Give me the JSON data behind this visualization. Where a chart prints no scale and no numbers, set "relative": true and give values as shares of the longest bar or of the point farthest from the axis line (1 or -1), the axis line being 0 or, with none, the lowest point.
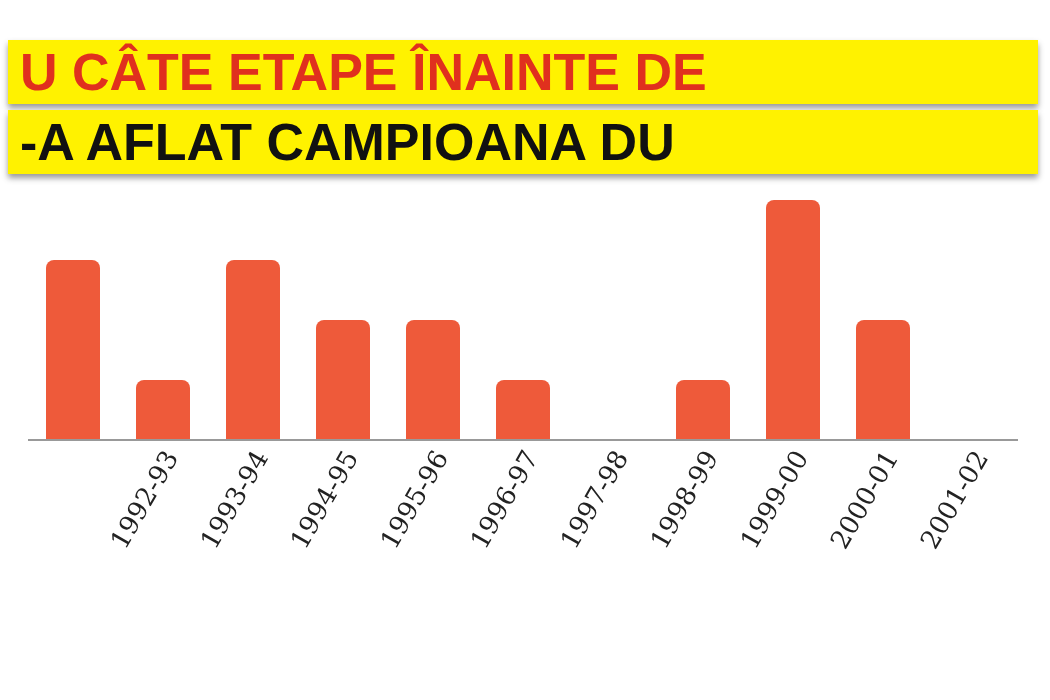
{
  "chart_data": {
    "type": "bar",
    "title": "U CÂTE ETAPE ÎNAINTE DE",
    "subtitle": "-A AFLAT CAMPIOANA DU",
    "categories": [
      null,
      "1992-93",
      "1993-94",
      "1994-95",
      "1995-96",
      "1996-97",
      "1997-98",
      "1998-99",
      "1999-00",
      "2000-01",
      "2001-02"
    ],
    "values": [
      0.75,
      0.25,
      0.75,
      0.5,
      0.5,
      0.25,
      0,
      0.25,
      1,
      0.5,
      0
    ],
    "color": "#ee5a3a",
    "relative": true
  }
}
